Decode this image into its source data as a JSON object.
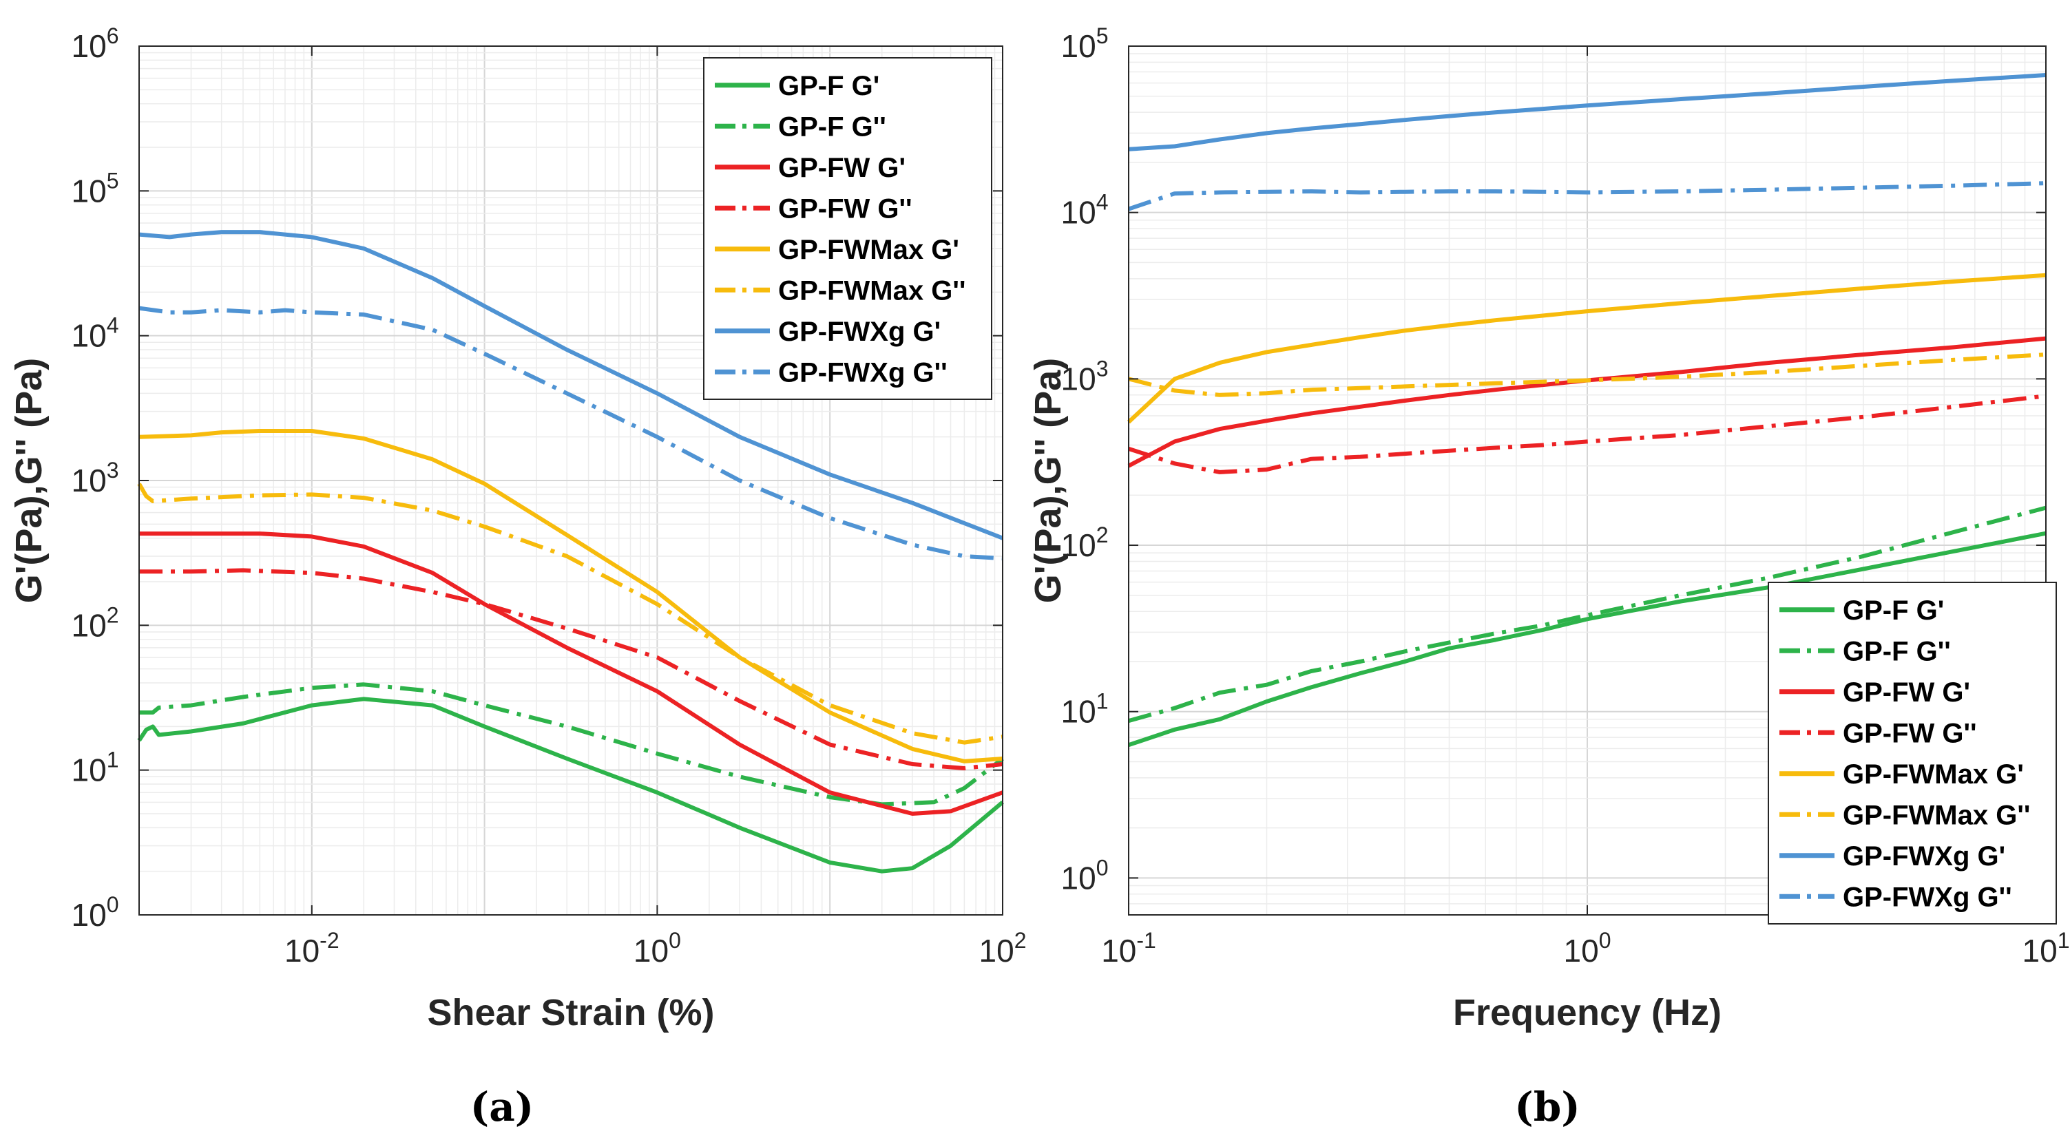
{
  "chart_data": [
    {
      "type": "line",
      "panel_label": "(a)",
      "xlabel": "Shear Strain (%)",
      "ylabel": "G'(Pa),G'' (Pa)",
      "xscale": "log",
      "yscale": "log",
      "xlim": [
        0.001,
        100
      ],
      "ylim": [
        1,
        1000000
      ],
      "grid": true,
      "legend_position": "top-right",
      "x_ticks": [
        {
          "value": 0.01,
          "base": "10",
          "exp": "-2"
        },
        {
          "value": 1,
          "base": "10",
          "exp": "0"
        },
        {
          "value": 100,
          "base": "10",
          "exp": "2"
        }
      ],
      "y_ticks": [
        {
          "value": 1,
          "base": "10",
          "exp": "0"
        },
        {
          "value": 10,
          "base": "10",
          "exp": "1"
        },
        {
          "value": 100,
          "base": "10",
          "exp": "2"
        },
        {
          "value": 1000,
          "base": "10",
          "exp": "3"
        },
        {
          "value": 10000,
          "base": "10",
          "exp": "4"
        },
        {
          "value": 100000,
          "base": "10",
          "exp": "5"
        },
        {
          "value": 1000000,
          "base": "10",
          "exp": "6"
        }
      ],
      "series": [
        {
          "name": "GP-F G'",
          "color": "#2db34a",
          "style": "solid",
          "x": [
            0.001,
            0.0011,
            0.0012,
            0.0013,
            0.002,
            0.004,
            0.01,
            0.02,
            0.05,
            0.1,
            0.3,
            1,
            3,
            10,
            20,
            30,
            50,
            100
          ],
          "y": [
            16,
            19,
            20,
            17.5,
            18.5,
            21,
            28,
            31,
            28,
            20,
            12,
            7,
            4,
            2.3,
            2.0,
            2.1,
            3,
            6
          ]
        },
        {
          "name": "GP-F G''",
          "color": "#2db34a",
          "style": "dashdot",
          "x": [
            0.001,
            0.0012,
            0.0013,
            0.002,
            0.004,
            0.01,
            0.02,
            0.05,
            0.1,
            0.3,
            1,
            3,
            10,
            20,
            40,
            60,
            100
          ],
          "y": [
            25,
            25,
            27,
            28,
            32,
            37,
            39,
            35,
            28,
            20,
            13,
            9,
            6.5,
            5.8,
            6.0,
            7.5,
            12
          ]
        },
        {
          "name": "GP-FW G'",
          "color": "#ec2224",
          "style": "solid",
          "x": [
            0.001,
            0.002,
            0.005,
            0.01,
            0.02,
            0.05,
            0.1,
            0.3,
            1,
            3,
            10,
            30,
            50,
            100
          ],
          "y": [
            430,
            430,
            430,
            410,
            350,
            230,
            140,
            70,
            35,
            15,
            7,
            5,
            5.2,
            7
          ]
        },
        {
          "name": "GP-FW G''",
          "color": "#ec2224",
          "style": "dashdot",
          "x": [
            0.001,
            0.002,
            0.004,
            0.01,
            0.02,
            0.05,
            0.1,
            0.3,
            1,
            3,
            10,
            30,
            60,
            100
          ],
          "y": [
            235,
            235,
            240,
            230,
            210,
            170,
            140,
            95,
            60,
            30,
            15,
            11,
            10.3,
            11
          ]
        },
        {
          "name": "GP-FWMax G'",
          "color": "#f7bb0c",
          "style": "solid",
          "x": [
            0.001,
            0.002,
            0.003,
            0.005,
            0.01,
            0.02,
            0.05,
            0.1,
            0.3,
            1,
            3,
            10,
            30,
            60,
            100
          ],
          "y": [
            2000,
            2050,
            2150,
            2200,
            2200,
            1950,
            1400,
            950,
            420,
            170,
            60,
            25,
            14,
            11.5,
            12
          ]
        },
        {
          "name": "GP-FWMax G''",
          "color": "#f7bb0c",
          "style": "dashdot",
          "x": [
            0.001,
            0.0011,
            0.0012,
            0.002,
            0.005,
            0.01,
            0.02,
            0.05,
            0.1,
            0.3,
            1,
            3,
            10,
            30,
            60,
            100
          ],
          "y": [
            950,
            780,
            720,
            750,
            790,
            800,
            760,
            620,
            480,
            300,
            140,
            60,
            28,
            18,
            15.5,
            17
          ]
        },
        {
          "name": "GP-FWXg G'",
          "color": "#4f93d3",
          "style": "solid",
          "x": [
            0.001,
            0.0015,
            0.002,
            0.003,
            0.005,
            0.01,
            0.02,
            0.05,
            0.1,
            0.3,
            1,
            3,
            10,
            30,
            100
          ],
          "y": [
            50000,
            48000,
            50000,
            52000,
            52000,
            48000,
            40000,
            25000,
            16000,
            8000,
            4000,
            2000,
            1100,
            700,
            400
          ]
        },
        {
          "name": "GP-FWXg G''",
          "color": "#4f93d3",
          "style": "dashdot",
          "x": [
            0.001,
            0.0015,
            0.002,
            0.003,
            0.005,
            0.007,
            0.01,
            0.02,
            0.05,
            0.1,
            0.3,
            1,
            3,
            10,
            30,
            60,
            100
          ],
          "y": [
            15500,
            14500,
            14500,
            15000,
            14500,
            15000,
            14500,
            14000,
            11000,
            7500,
            4000,
            2000,
            1000,
            550,
            360,
            300,
            290
          ]
        }
      ]
    },
    {
      "type": "line",
      "panel_label": "(b)",
      "xlabel": "Frequency (Hz)",
      "ylabel": "G'(Pa),G'' (Pa)",
      "xscale": "log",
      "yscale": "log",
      "xlim": [
        0.1,
        10
      ],
      "ylim": [
        0.6,
        100000
      ],
      "grid": true,
      "legend_position": "bottom-right",
      "x_ticks": [
        {
          "value": 0.1,
          "base": "10",
          "exp": "-1"
        },
        {
          "value": 1,
          "base": "10",
          "exp": "0"
        },
        {
          "value": 10,
          "base": "10",
          "exp": "1"
        }
      ],
      "y_ticks": [
        {
          "value": 1,
          "base": "10",
          "exp": "0"
        },
        {
          "value": 10,
          "base": "10",
          "exp": "1"
        },
        {
          "value": 100,
          "base": "10",
          "exp": "2"
        },
        {
          "value": 1000,
          "base": "10",
          "exp": "3"
        },
        {
          "value": 10000,
          "base": "10",
          "exp": "4"
        },
        {
          "value": 100000,
          "base": "10",
          "exp": "5"
        }
      ],
      "series": [
        {
          "name": "GP-F G'",
          "color": "#2db34a",
          "style": "solid",
          "x": [
            0.1,
            0.126,
            0.158,
            0.2,
            0.25,
            0.32,
            0.4,
            0.5,
            0.63,
            0.8,
            1,
            1.6,
            2.5,
            4,
            6.3,
            10
          ],
          "y": [
            6.3,
            7.8,
            9,
            11.5,
            14,
            17,
            20,
            24,
            27,
            31,
            36,
            46,
            56,
            72,
            92,
            118
          ]
        },
        {
          "name": "GP-F G''",
          "color": "#2db34a",
          "style": "dashdot",
          "x": [
            0.1,
            0.126,
            0.158,
            0.2,
            0.25,
            0.32,
            0.4,
            0.5,
            0.63,
            0.8,
            1,
            1.6,
            2.5,
            4,
            6.3,
            10
          ],
          "y": [
            8.8,
            10.5,
            13,
            14.5,
            17.5,
            20,
            23,
            26,
            29.5,
            33,
            38,
            50,
            64,
            86,
            120,
            168
          ]
        },
        {
          "name": "GP-FW G'",
          "color": "#ec2224",
          "style": "solid",
          "x": [
            0.1,
            0.126,
            0.158,
            0.2,
            0.25,
            0.32,
            0.4,
            0.5,
            0.63,
            0.8,
            1,
            1.6,
            2.5,
            4,
            6.3,
            10
          ],
          "y": [
            300,
            420,
            500,
            560,
            620,
            680,
            740,
            800,
            860,
            920,
            980,
            1100,
            1250,
            1400,
            1550,
            1750
          ]
        },
        {
          "name": "GP-FW G''",
          "color": "#ec2224",
          "style": "dashdot",
          "x": [
            0.1,
            0.126,
            0.158,
            0.2,
            0.25,
            0.32,
            0.4,
            0.5,
            0.63,
            0.8,
            1,
            1.6,
            2.5,
            4,
            6.3,
            10
          ],
          "y": [
            380,
            310,
            275,
            285,
            330,
            340,
            355,
            370,
            385,
            400,
            420,
            460,
            520,
            590,
            680,
            790
          ]
        },
        {
          "name": "GP-FWMax G'",
          "color": "#f7bb0c",
          "style": "solid",
          "x": [
            0.1,
            0.126,
            0.158,
            0.2,
            0.25,
            0.32,
            0.4,
            0.5,
            0.63,
            0.8,
            1,
            1.6,
            2.5,
            4,
            6.3,
            10
          ],
          "y": [
            550,
            1000,
            1250,
            1450,
            1600,
            1780,
            1950,
            2100,
            2250,
            2400,
            2550,
            2850,
            3150,
            3500,
            3850,
            4200
          ]
        },
        {
          "name": "GP-FWMax G''",
          "color": "#f7bb0c",
          "style": "dashdot",
          "x": [
            0.1,
            0.126,
            0.158,
            0.2,
            0.25,
            0.32,
            0.4,
            0.5,
            0.63,
            0.8,
            1,
            1.6,
            2.5,
            4,
            6.3,
            10
          ],
          "y": [
            1000,
            850,
            800,
            820,
            860,
            880,
            900,
            920,
            940,
            960,
            980,
            1030,
            1100,
            1200,
            1300,
            1400
          ]
        },
        {
          "name": "GP-FWXg G'",
          "color": "#4f93d3",
          "style": "solid",
          "x": [
            0.1,
            0.126,
            0.158,
            0.2,
            0.25,
            0.32,
            0.4,
            0.5,
            0.63,
            0.8,
            1,
            1.6,
            2.5,
            4,
            6.3,
            10
          ],
          "y": [
            24000,
            25000,
            27500,
            30000,
            32000,
            34000,
            36000,
            38000,
            40000,
            42000,
            44000,
            48000,
            52000,
            57000,
            62000,
            67000
          ]
        },
        {
          "name": "GP-FWXg G''",
          "color": "#4f93d3",
          "style": "dashdot",
          "x": [
            0.1,
            0.126,
            0.158,
            0.2,
            0.25,
            0.32,
            0.4,
            0.5,
            0.63,
            0.8,
            1,
            1.6,
            2.5,
            4,
            6.3,
            10
          ],
          "y": [
            10500,
            13000,
            13200,
            13300,
            13400,
            13200,
            13300,
            13400,
            13400,
            13300,
            13200,
            13400,
            13700,
            14100,
            14500,
            15000
          ]
        }
      ]
    }
  ]
}
